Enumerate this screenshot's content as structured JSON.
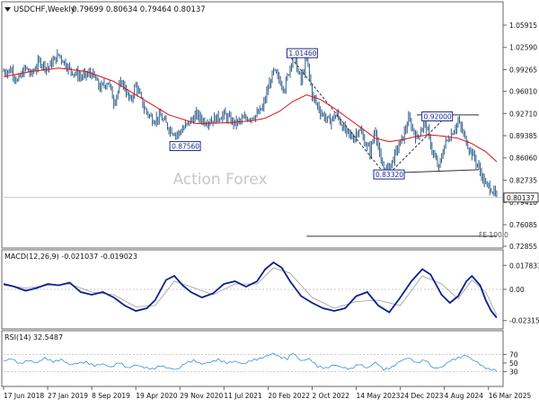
{
  "header": {
    "symbol_tf": "USDCHF,Weekly",
    "ohlc": "0.79699 0.80634 0.79464 0.80137",
    "watermark": "Action Forex"
  },
  "colors": {
    "price": "#2f5d8a",
    "ma": "#e01010",
    "macd": "#0a1f8f",
    "signal": "#9a9a9a",
    "rsi": "#3a8fe0",
    "level": "#333333",
    "grid": "#bbbbbb"
  },
  "chart_data": [
    {
      "type": "line",
      "name": "price",
      "ylim": [
        0.72855,
        1.0726
      ],
      "y_ticks": [
        1.05915,
        1.0259,
        0.99265,
        0.9601,
        0.9271,
        0.89385,
        0.8606,
        0.82735,
        0.7941,
        0.76085,
        0.72855
      ],
      "y_tick_labels": [
        "1.05915",
        "1.02590",
        "0.99265",
        "0.96010",
        "0.92710",
        "0.89385",
        "0.86060",
        "0.82735",
        "0.79410",
        "0.76085",
        "0.72855"
      ],
      "x_tick_labels": [
        "17 Jun 2018",
        "27 Jan 2019",
        "8 Sep 2019",
        "19 Apr 2020",
        "29 Nov 2020",
        "11 Jul 2021",
        "20 Feb 2022",
        "2 Oct 2022",
        "14 May 2023",
        "24 Dec 2023",
        "4 Aug 2024",
        "16 Mar 2025"
      ],
      "x_tick_index": [
        0,
        32,
        64,
        96,
        128,
        160,
        192,
        224,
        256,
        288,
        320,
        352
      ],
      "close_points": [
        [
          0,
          0.99
        ],
        [
          6,
          0.992
        ],
        [
          10,
          0.975
        ],
        [
          16,
          0.995
        ],
        [
          20,
          0.985
        ],
        [
          26,
          1.005
        ],
        [
          32,
          0.995
        ],
        [
          40,
          1.015
        ],
        [
          48,
          0.993
        ],
        [
          56,
          0.982
        ],
        [
          64,
          0.987
        ],
        [
          70,
          0.965
        ],
        [
          76,
          0.975
        ],
        [
          80,
          0.945
        ],
        [
          86,
          0.975
        ],
        [
          92,
          0.945
        ],
        [
          96,
          0.97
        ],
        [
          102,
          0.935
        ],
        [
          108,
          0.918
        ],
        [
          114,
          0.922
        ],
        [
          120,
          0.905
        ],
        [
          126,
          0.8956
        ],
        [
          134,
          0.912
        ],
        [
          140,
          0.925
        ],
        [
          146,
          0.915
        ],
        [
          152,
          0.918
        ],
        [
          160,
          0.925
        ],
        [
          168,
          0.912
        ],
        [
          176,
          0.92
        ],
        [
          184,
          0.925
        ],
        [
          188,
          0.935
        ],
        [
          192,
          0.965
        ],
        [
          196,
          0.99
        ],
        [
          204,
          0.965
        ],
        [
          210,
          1.0146
        ],
        [
          216,
          0.975
        ],
        [
          220,
          1.01
        ],
        [
          224,
          0.955
        ],
        [
          230,
          0.93
        ],
        [
          236,
          0.915
        ],
        [
          242,
          0.925
        ],
        [
          248,
          0.9
        ],
        [
          254,
          0.89
        ],
        [
          258,
          0.905
        ],
        [
          262,
          0.885
        ],
        [
          266,
          0.87
        ],
        [
          270,
          0.905
        ],
        [
          274,
          0.85
        ],
        [
          278,
          0.843
        ],
        [
          282,
          0.855
        ],
        [
          286,
          0.875
        ],
        [
          290,
          0.892
        ],
        [
          294,
          0.918
        ],
        [
          300,
          0.89
        ],
        [
          306,
          0.915
        ],
        [
          312,
          0.865
        ],
        [
          316,
          0.845
        ],
        [
          320,
          0.88
        ],
        [
          326,
          0.9
        ],
        [
          330,
          0.915
        ],
        [
          334,
          0.895
        ],
        [
          338,
          0.875
        ],
        [
          342,
          0.86
        ],
        [
          346,
          0.84
        ],
        [
          350,
          0.82
        ],
        [
          354,
          0.815
        ],
        [
          358,
          0.8014
        ]
      ],
      "ma_points": [
        [
          0,
          0.982
        ],
        [
          20,
          0.99
        ],
        [
          40,
          0.995
        ],
        [
          60,
          0.99
        ],
        [
          80,
          0.975
        ],
        [
          100,
          0.95
        ],
        [
          120,
          0.925
        ],
        [
          140,
          0.912
        ],
        [
          160,
          0.913
        ],
        [
          180,
          0.916
        ],
        [
          190,
          0.92
        ],
        [
          200,
          0.93
        ],
        [
          210,
          0.945
        ],
        [
          220,
          0.955
        ],
        [
          230,
          0.948
        ],
        [
          240,
          0.935
        ],
        [
          250,
          0.92
        ],
        [
          260,
          0.905
        ],
        [
          270,
          0.89
        ],
        [
          280,
          0.885
        ],
        [
          290,
          0.888
        ],
        [
          300,
          0.893
        ],
        [
          310,
          0.895
        ],
        [
          320,
          0.893
        ],
        [
          330,
          0.89
        ],
        [
          340,
          0.882
        ],
        [
          350,
          0.87
        ],
        [
          358,
          0.855
        ]
      ],
      "annotations": [
        {
          "text": "1.01460",
          "x": 207,
          "y": 1.0146
        },
        {
          "text": "0.87560",
          "x": 122,
          "y": 0.8756
        },
        {
          "text": "0.83320",
          "x": 270,
          "y": 0.8332
        },
        {
          "text": "0.92000",
          "x": 305,
          "y": 0.92
        },
        {
          "text": "FE 100.0",
          "x": 345,
          "y": 0.7435
        }
      ],
      "trendlines": [
        {
          "from": [
            207,
            1.0146
          ],
          "to": [
            278,
            0.8332
          ],
          "style": "dashed"
        },
        {
          "from": [
            278,
            0.8332
          ],
          "to": [
            320,
            0.92
          ],
          "style": "dashed"
        },
        {
          "from": [
            280,
            0.838
          ],
          "to": [
            345,
            0.843
          ],
          "style": "solid"
        },
        {
          "from": [
            300,
            0.925
          ],
          "to": [
            345,
            0.925
          ],
          "style": "solid"
        },
        {
          "from": [
            220,
            0.7435
          ],
          "to": [
            358,
            0.7435
          ],
          "style": "solid"
        }
      ],
      "current_price": {
        "label": "0.80137",
        "value": 0.80137
      }
    },
    {
      "type": "line",
      "name": "macd",
      "title": "MACD(12,26,9) -0.021037 -0.019023",
      "ylim": [
        -0.028,
        0.02
      ],
      "y_tick_labels": [
        "0.017833",
        "0.00",
        "-0.023159"
      ],
      "y_tick_values": [
        0.017833,
        0.0,
        -0.023159
      ],
      "macd_points": [
        [
          0,
          0.004
        ],
        [
          8,
          0.002
        ],
        [
          16,
          -0.001
        ],
        [
          24,
          0.001
        ],
        [
          32,
          0.004
        ],
        [
          40,
          0.003
        ],
        [
          48,
          0.005
        ],
        [
          56,
          -0.002
        ],
        [
          64,
          -0.004
        ],
        [
          72,
          -0.002
        ],
        [
          80,
          -0.006
        ],
        [
          88,
          -0.012
        ],
        [
          96,
          -0.016
        ],
        [
          104,
          -0.014
        ],
        [
          110,
          -0.008
        ],
        [
          118,
          0.007
        ],
        [
          124,
          0.01
        ],
        [
          130,
          0.003
        ],
        [
          136,
          -0.002
        ],
        [
          144,
          -0.006
        ],
        [
          152,
          -0.003
        ],
        [
          160,
          0.004
        ],
        [
          168,
          0.006
        ],
        [
          176,
          0.002
        ],
        [
          184,
          0.006
        ],
        [
          190,
          0.015
        ],
        [
          196,
          0.02
        ],
        [
          202,
          0.016
        ],
        [
          208,
          0.006
        ],
        [
          216,
          -0.005
        ],
        [
          224,
          -0.01
        ],
        [
          232,
          -0.014
        ],
        [
          240,
          -0.016
        ],
        [
          248,
          -0.014
        ],
        [
          256,
          -0.005
        ],
        [
          264,
          -0.002
        ],
        [
          272,
          -0.012
        ],
        [
          280,
          -0.017
        ],
        [
          288,
          -0.006
        ],
        [
          296,
          0.006
        ],
        [
          304,
          0.015
        ],
        [
          310,
          0.011
        ],
        [
          318,
          -0.004
        ],
        [
          324,
          -0.01
        ],
        [
          330,
          -0.005
        ],
        [
          336,
          0.006
        ],
        [
          340,
          0.01
        ],
        [
          346,
          0.003
        ],
        [
          350,
          -0.008
        ],
        [
          354,
          -0.016
        ],
        [
          358,
          -0.021
        ]
      ],
      "signal_points": [
        [
          0,
          0.003
        ],
        [
          16,
          0.001
        ],
        [
          32,
          0.003
        ],
        [
          48,
          0.004
        ],
        [
          64,
          -0.002
        ],
        [
          80,
          -0.004
        ],
        [
          96,
          -0.013
        ],
        [
          110,
          -0.012
        ],
        [
          124,
          0.006
        ],
        [
          136,
          0.002
        ],
        [
          152,
          -0.004
        ],
        [
          168,
          0.004
        ],
        [
          184,
          0.004
        ],
        [
          196,
          0.016
        ],
        [
          208,
          0.012
        ],
        [
          224,
          -0.006
        ],
        [
          240,
          -0.014
        ],
        [
          256,
          -0.009
        ],
        [
          272,
          -0.008
        ],
        [
          288,
          -0.012
        ],
        [
          304,
          0.01
        ],
        [
          318,
          0.004
        ],
        [
          330,
          -0.007
        ],
        [
          340,
          0.007
        ],
        [
          350,
          -0.002
        ],
        [
          358,
          -0.019
        ]
      ]
    },
    {
      "type": "line",
      "name": "rsi",
      "title": "RSI(14) 32.5487",
      "ylim": [
        0,
        100
      ],
      "y_tick_labels": [
        "70",
        "50",
        "30"
      ],
      "y_tick_values": [
        70,
        50,
        30
      ],
      "rsi_points": [
        [
          0,
          55
        ],
        [
          6,
          60
        ],
        [
          12,
          48
        ],
        [
          18,
          57
        ],
        [
          24,
          50
        ],
        [
          30,
          62
        ],
        [
          36,
          53
        ],
        [
          42,
          58
        ],
        [
          48,
          46
        ],
        [
          54,
          50
        ],
        [
          60,
          52
        ],
        [
          66,
          44
        ],
        [
          72,
          48
        ],
        [
          78,
          40
        ],
        [
          84,
          52
        ],
        [
          90,
          38
        ],
        [
          96,
          46
        ],
        [
          102,
          40
        ],
        [
          108,
          36
        ],
        [
          114,
          44
        ],
        [
          120,
          38
        ],
        [
          126,
          35
        ],
        [
          132,
          50
        ],
        [
          138,
          56
        ],
        [
          144,
          48
        ],
        [
          150,
          52
        ],
        [
          156,
          58
        ],
        [
          162,
          50
        ],
        [
          168,
          54
        ],
        [
          174,
          48
        ],
        [
          180,
          56
        ],
        [
          186,
          60
        ],
        [
          192,
          68
        ],
        [
          196,
          72
        ],
        [
          200,
          65
        ],
        [
          206,
          60
        ],
        [
          210,
          74
        ],
        [
          216,
          55
        ],
        [
          222,
          60
        ],
        [
          228,
          42
        ],
        [
          234,
          38
        ],
        [
          240,
          46
        ],
        [
          246,
          40
        ],
        [
          252,
          36
        ],
        [
          258,
          48
        ],
        [
          264,
          38
        ],
        [
          270,
          52
        ],
        [
          276,
          35
        ],
        [
          282,
          40
        ],
        [
          288,
          55
        ],
        [
          294,
          62
        ],
        [
          300,
          50
        ],
        [
          306,
          58
        ],
        [
          312,
          38
        ],
        [
          318,
          40
        ],
        [
          324,
          55
        ],
        [
          330,
          62
        ],
        [
          336,
          68
        ],
        [
          340,
          58
        ],
        [
          344,
          52
        ],
        [
          348,
          42
        ],
        [
          352,
          36
        ],
        [
          356,
          34
        ],
        [
          358,
          32.5
        ]
      ]
    }
  ]
}
